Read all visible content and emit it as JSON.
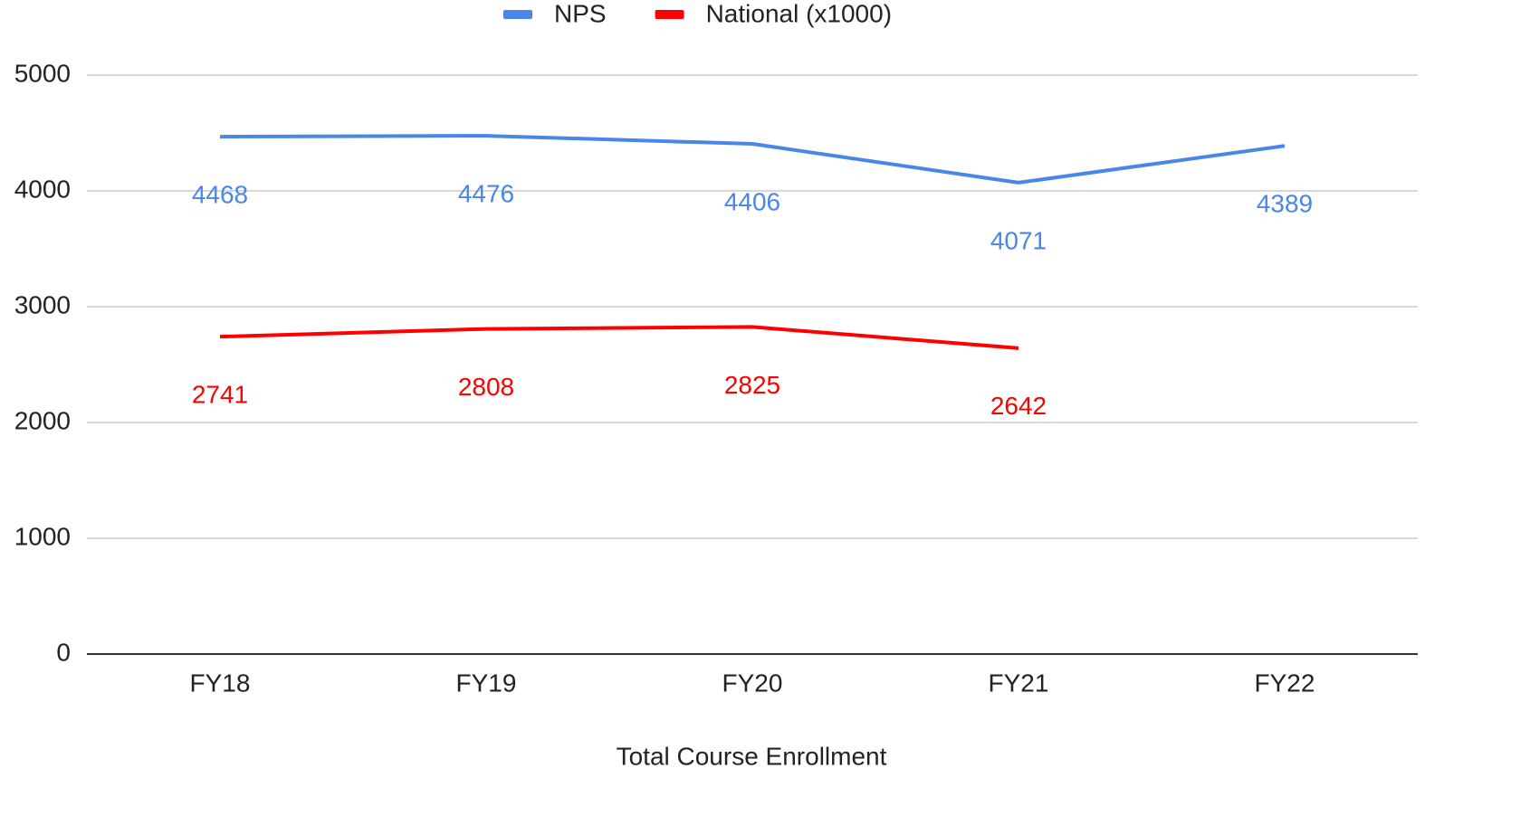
{
  "chart_data": {
    "type": "line",
    "x_label": "Total Course Enrollment",
    "categories": [
      "FY18",
      "FY19",
      "FY20",
      "FY21",
      "FY22"
    ],
    "series": [
      {
        "name": "NPS",
        "color": "#4a86e8",
        "values": [
          4468,
          4476,
          4406,
          4071,
          4389
        ]
      },
      {
        "name": "National (x1000)",
        "color": "#ff0000",
        "values": [
          2741,
          2808,
          2825,
          2642,
          null
        ]
      }
    ],
    "ylim": [
      0,
      5000
    ],
    "yticks": [
      0,
      1000,
      2000,
      3000,
      4000,
      5000
    ],
    "grid": true,
    "legend": "top"
  }
}
